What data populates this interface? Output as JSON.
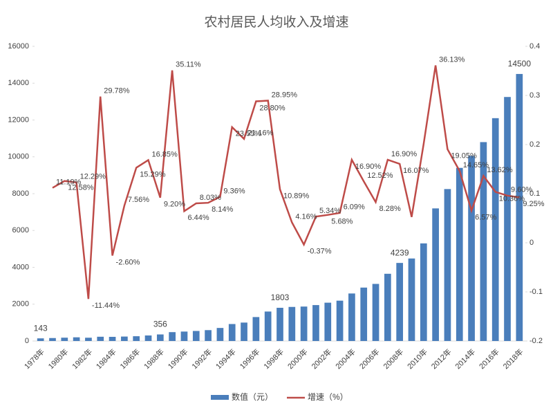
{
  "chart_data": {
    "type": "bar_line",
    "title": "农村居民人均收入及增速",
    "categories": [
      "1978年",
      null,
      "1980年",
      null,
      "1982年",
      null,
      "1984年",
      null,
      "1986年",
      null,
      "1988年",
      null,
      "1990年",
      null,
      "1992年",
      null,
      "1994年",
      null,
      "1996年",
      null,
      "1998年",
      null,
      "2000年",
      null,
      "2002年",
      null,
      "2004年",
      null,
      "2006年",
      null,
      "2008年",
      null,
      "2010年",
      null,
      "2012年",
      null,
      "2014年",
      null,
      "2016年",
      null,
      "2018年"
    ],
    "series": [
      {
        "name": "数值（元）",
        "type": "bar",
        "color": "#4a7ebb",
        "values": [
          143,
          160,
          180,
          200,
          178,
          231,
          225,
          241,
          259,
          300,
          356,
          481,
          512,
          545,
          590,
          708,
          921,
          1000,
          1300,
          1600,
          1803,
          1850,
          1870,
          1950,
          2080,
          2190,
          2580,
          2900,
          3100,
          3650,
          4239,
          4480,
          5300,
          7200,
          8250,
          9400,
          10050,
          10800,
          12100,
          13250,
          14500
        ],
        "value_labels": [
          "143",
          null,
          null,
          null,
          null,
          null,
          null,
          null,
          null,
          null,
          "356",
          null,
          null,
          null,
          null,
          null,
          null,
          null,
          null,
          null,
          "1803",
          null,
          null,
          null,
          null,
          null,
          null,
          null,
          null,
          null,
          "4239",
          null,
          null,
          null,
          null,
          null,
          null,
          null,
          null,
          null,
          "14500"
        ]
      },
      {
        "name": "增速（%）",
        "type": "line",
        "axis": "y2",
        "color": "#be4b48",
        "values": [
          null,
          0.1119,
          0.1258,
          0.1229,
          -0.1144,
          0.2978,
          -0.026,
          0.0756,
          0.1529,
          0.1685,
          0.092,
          0.3511,
          0.0644,
          0.0803,
          0.0814,
          0.0936,
          0.2355,
          0.2116,
          0.288,
          0.2895,
          0.1089,
          0.0416,
          -0.0037,
          0.0534,
          0.0568,
          0.0609,
          0.169,
          0.1252,
          0.0828,
          0.169,
          0.1607,
          0.0525,
          0.2005,
          0.3613,
          0.1905,
          0.1465,
          0.0657,
          0.1362,
          0.1036,
          0.096,
          0.0925
        ],
        "value_labels": [
          null,
          "11.19%",
          "12.58%",
          "12.29%",
          "-11.44%",
          "29.78%",
          "-2.60%",
          "7.56%",
          "15.29%",
          "16.85%",
          "9.20%",
          "35.11%",
          "6.44%",
          "8.03%",
          "8.14%",
          "9.36%",
          "23.55%",
          "21.16%",
          "28.80%",
          "28.95%",
          "10.89%",
          "4.16%",
          "-0.37%",
          "5.34%",
          "5.68%",
          "6.09%",
          "16.90%",
          "12.52%",
          "8.28%",
          "16.90%",
          "16.07%",
          null,
          null,
          "36.13%",
          "19.05%",
          "14.65%",
          "6.57%",
          "13.62%",
          "10.36%",
          "9.60%",
          "9.25%"
        ]
      }
    ],
    "ylim": [
      0,
      16000
    ],
    "yticks": [
      0,
      2000,
      4000,
      6000,
      8000,
      10000,
      12000,
      14000,
      16000
    ],
    "y2lim": [
      -0.2,
      0.4
    ],
    "y2ticks": [
      -0.2,
      -0.1,
      0,
      0.1,
      0.2,
      0.3,
      0.4
    ],
    "legend": "bottom"
  }
}
